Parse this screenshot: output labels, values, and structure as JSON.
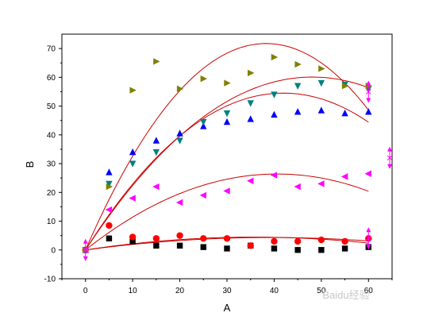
{
  "chart_data": {
    "type": "scatter",
    "xlabel": "A",
    "ylabel": "B",
    "xlim": [
      -5,
      65
    ],
    "ylim": [
      -10,
      75
    ],
    "x_ticks": [
      0,
      10,
      20,
      30,
      40,
      50,
      60
    ],
    "y_ticks": [
      -10,
      0,
      10,
      20,
      30,
      40,
      50,
      60,
      70
    ],
    "grid": false,
    "fit_curves": "quadratic fits drawn in red for each series",
    "fit_color": "#cc0000",
    "series": [
      {
        "marker": "square",
        "color": "#000000",
        "points": [
          [
            0,
            0
          ],
          [
            5,
            4
          ],
          [
            10,
            3
          ],
          [
            15,
            1.5
          ],
          [
            20,
            1.5
          ],
          [
            25,
            1
          ],
          [
            30,
            0.5
          ],
          [
            35,
            1.5
          ],
          [
            40,
            0.5
          ],
          [
            45,
            0
          ],
          [
            50,
            0
          ],
          [
            55,
            0.5
          ],
          [
            60,
            1
          ]
        ],
        "fit": [
          0.25,
          -0.0035
        ]
      },
      {
        "marker": "circle",
        "color": "#ff0000",
        "points": [
          [
            0,
            0
          ],
          [
            5,
            8.5
          ],
          [
            10,
            4.5
          ],
          [
            15,
            4
          ],
          [
            20,
            5
          ],
          [
            25,
            4
          ],
          [
            30,
            4
          ],
          [
            35,
            1.5
          ],
          [
            40,
            3
          ],
          [
            45,
            3
          ],
          [
            50,
            3.5
          ],
          [
            55,
            3
          ],
          [
            60,
            4
          ]
        ],
        "fit": [
          0.22,
          -0.0028
        ]
      },
      {
        "marker": "triangle-up",
        "color": "#0000ff",
        "points": [
          [
            0,
            0
          ],
          [
            5,
            27
          ],
          [
            10,
            34
          ],
          [
            15,
            38
          ],
          [
            20,
            40.5
          ],
          [
            25,
            43
          ],
          [
            30,
            44.5
          ],
          [
            35,
            45.5
          ],
          [
            40,
            47
          ],
          [
            45,
            48
          ],
          [
            50,
            48.5
          ],
          [
            55,
            47.5
          ],
          [
            60,
            48
          ]
        ],
        "fit": [
          2.6,
          -0.031
        ]
      },
      {
        "marker": "triangle-down",
        "color": "#008080",
        "points": [
          [
            0,
            0
          ],
          [
            5,
            23
          ],
          [
            10,
            30
          ],
          [
            15,
            34
          ],
          [
            20,
            38
          ],
          [
            25,
            44.5
          ],
          [
            30,
            47.5
          ],
          [
            35,
            51
          ],
          [
            40,
            54
          ],
          [
            45,
            57
          ],
          [
            50,
            58
          ],
          [
            55,
            57.5
          ],
          [
            60,
            56
          ]
        ],
        "fit": [
          2.5,
          -0.026
        ]
      },
      {
        "marker": "triangle-left",
        "color": "#ff00ff",
        "points": [
          [
            0,
            0
          ],
          [
            5,
            14
          ],
          [
            10,
            18
          ],
          [
            15,
            22
          ],
          [
            20,
            16.5
          ],
          [
            25,
            19
          ],
          [
            30,
            20.5
          ],
          [
            35,
            24
          ],
          [
            40,
            26
          ],
          [
            45,
            22
          ],
          [
            50,
            23
          ],
          [
            55,
            25.5
          ],
          [
            60,
            26.5
          ]
        ],
        "fit": [
          1.3,
          -0.016
        ]
      },
      {
        "marker": "triangle-right",
        "color": "#808000",
        "points": [
          [
            0,
            0
          ],
          [
            5,
            22
          ],
          [
            10,
            55.5
          ],
          [
            15,
            65.5
          ],
          [
            20,
            56
          ],
          [
            25,
            59.5
          ],
          [
            30,
            58
          ],
          [
            35,
            61.5
          ],
          [
            40,
            67
          ],
          [
            45,
            64.5
          ],
          [
            50,
            63
          ],
          [
            55,
            57
          ],
          [
            60,
            57
          ]
        ],
        "fit": [
          3.75,
          -0.049
        ]
      }
    ],
    "error_markers": [
      {
        "x": 0,
        "y": 0
      },
      {
        "x": 60,
        "y": 4
      },
      {
        "x": 60,
        "y": 55
      },
      {
        "x": 64.5,
        "y": 32
      }
    ],
    "error_marker_color": "#ff00ff"
  },
  "watermark": "Baidu经验"
}
